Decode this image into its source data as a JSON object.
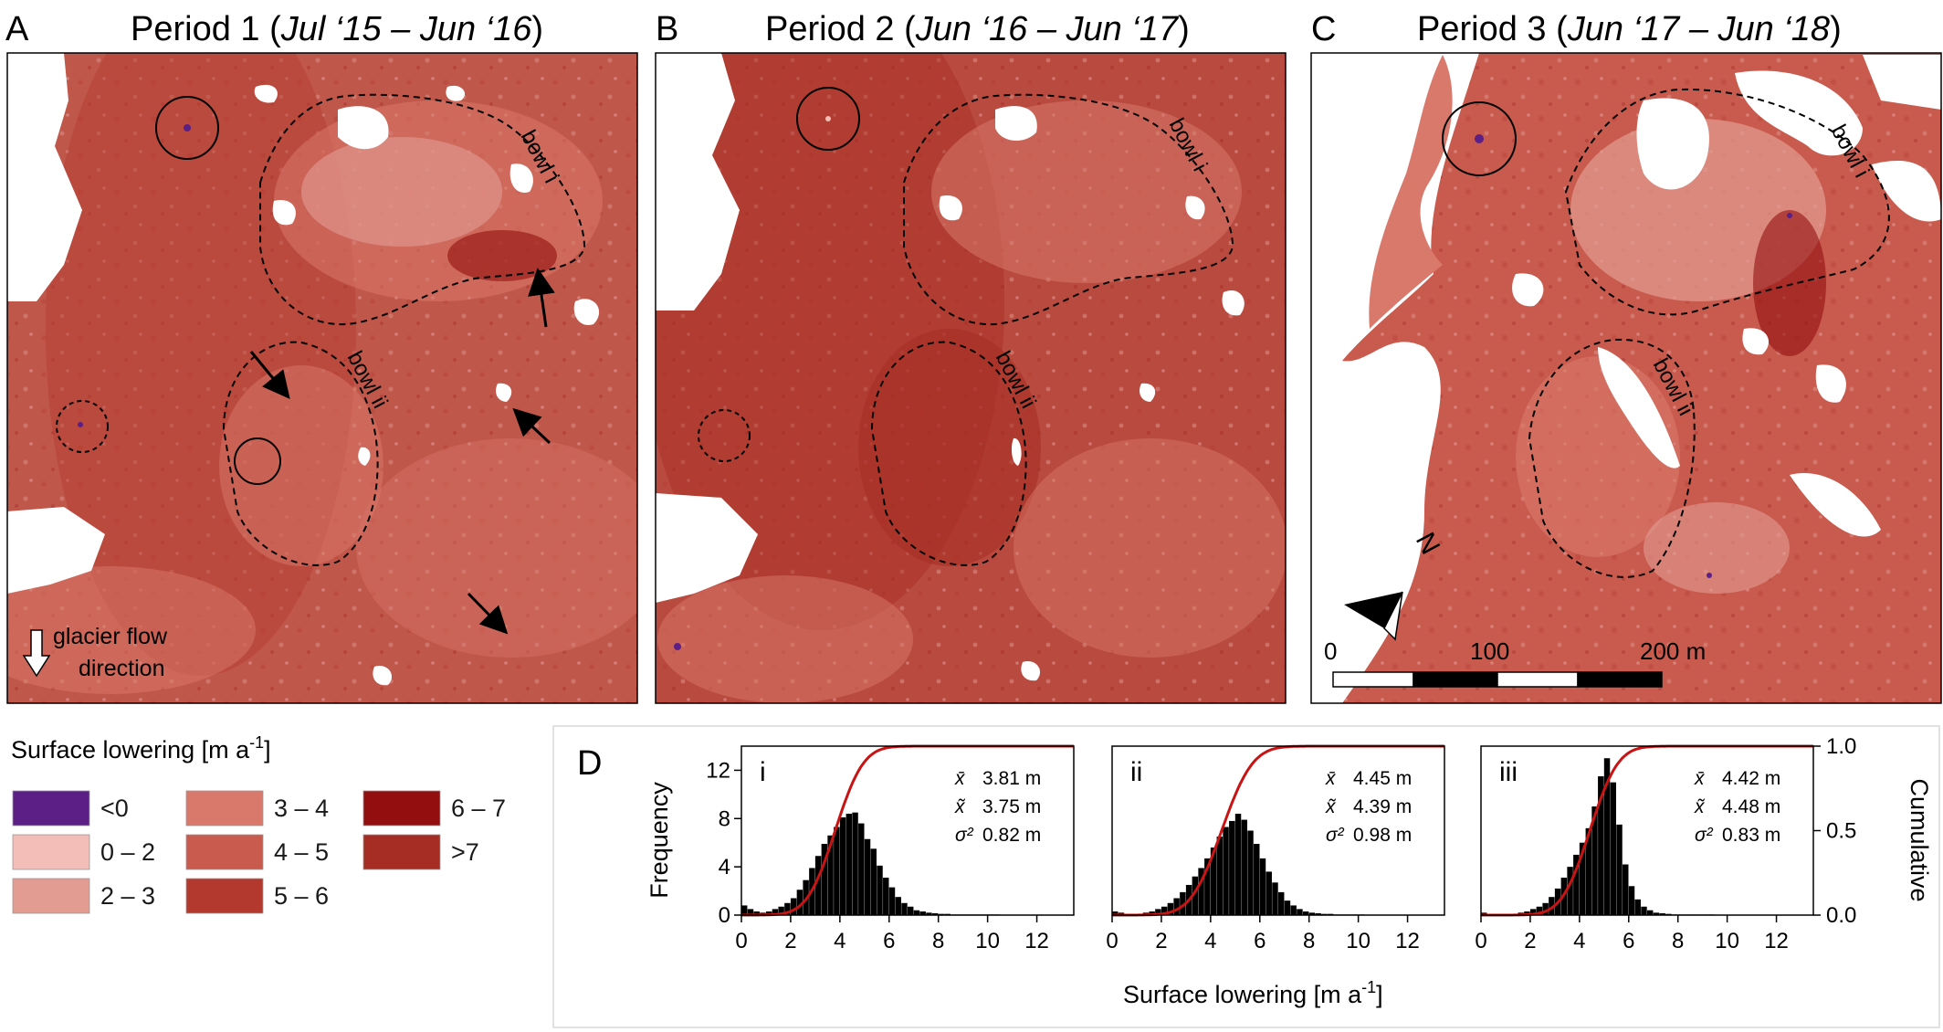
{
  "panels": [
    {
      "letter": "A",
      "title": "Period 1 (",
      "title_italic": "Jul ‘15 – Jun ‘16",
      "title_end": ")"
    },
    {
      "letter": "B",
      "title": "Period 2 (",
      "title_italic": "Jun ‘16 – Jun ‘17",
      "title_end": ")"
    },
    {
      "letter": "C",
      "title": "Period 3 (",
      "title_italic": "Jun ‘17 – Jun ‘18",
      "title_end": ")"
    }
  ],
  "map_annotations": {
    "bowl_i": "bowl i",
    "bowl_ii": "bowl ii",
    "flow_label_line1": "glacier flow",
    "flow_label_line2": "direction",
    "north": "N",
    "scale_labels": [
      "0",
      "100",
      "200 m"
    ]
  },
  "legend": {
    "title": "Surface lowering [m a",
    "title_sup": "-1",
    "title_end": "]",
    "items": [
      {
        "label": "<0",
        "color": "#5b1f86"
      },
      {
        "label": "0 – 2",
        "color": "#f3bdb8"
      },
      {
        "label": "2 – 3",
        "color": "#e39c92"
      },
      {
        "label": "3 – 4",
        "color": "#d9796b"
      },
      {
        "label": "4 – 5",
        "color": "#c85a4e"
      },
      {
        "label": "5 – 6",
        "color": "#b3392e"
      },
      {
        "label": "6 – 7",
        "color": "#930f0f"
      },
      {
        "label": ">7",
        "color": "#a62d23"
      }
    ]
  },
  "histograms": {
    "panel_letter": "D",
    "ylabel_left": "Frequency",
    "ylabel_right": "Cumulative",
    "xlabel": "Surface lowering [m a",
    "xlabel_sup": "-1",
    "xlabel_end": "]",
    "colors": {
      "bars": "#000000",
      "cdf": "#c81414"
    }
  },
  "chart_data": [
    {
      "type": "bar",
      "title": "i",
      "bin_width": 0.25,
      "bin_start": 0,
      "values": [
        0.8,
        0.5,
        0.3,
        0.2,
        0.3,
        0.5,
        0.7,
        1.0,
        1.4,
        2.1,
        2.9,
        3.9,
        4.9,
        5.9,
        6.6,
        7.3,
        8.1,
        8.4,
        8.5,
        7.6,
        6.3,
        5.5,
        4.1,
        3.1,
        2.3,
        1.5,
        1.0,
        0.7,
        0.4,
        0.3,
        0.2,
        0.15,
        0.1,
        0.1,
        0.05,
        0.05,
        0.05,
        0.05,
        0.05,
        0.05,
        0.05,
        0.05,
        0,
        0,
        0,
        0,
        0,
        0,
        0,
        0,
        0,
        0
      ],
      "cdf_mean": 3.81,
      "cdf_sd": 0.9,
      "stats": [
        {
          "sym": "x̄",
          "value": "3.81 m"
        },
        {
          "sym": "x̃",
          "value": "3.75 m"
        },
        {
          "sym": "σ²",
          "value": "0.82 m"
        }
      ],
      "xlim": [
        0,
        13.5
      ],
      "ylim": [
        0,
        14
      ],
      "xticks": [
        "0",
        "2",
        "4",
        "6",
        "8",
        "10",
        "12"
      ],
      "yticks": [
        "0",
        "4",
        "8",
        "12"
      ],
      "y2ticks": [
        "0.0",
        "0.5",
        "1.0"
      ]
    },
    {
      "type": "bar",
      "title": "ii",
      "bin_width": 0.25,
      "bin_start": 0,
      "values": [
        0.3,
        0.2,
        0.1,
        0.1,
        0.1,
        0.2,
        0.3,
        0.5,
        0.7,
        1.0,
        1.4,
        1.9,
        2.5,
        3.2,
        3.9,
        4.7,
        5.6,
        6.5,
        7.3,
        7.8,
        8.4,
        7.9,
        7.0,
        5.9,
        4.7,
        3.6,
        2.7,
        1.9,
        1.2,
        0.8,
        0.5,
        0.3,
        0.2,
        0.15,
        0.1,
        0.1,
        0.05,
        0.05,
        0.05,
        0.05,
        0.05,
        0,
        0,
        0,
        0,
        0,
        0,
        0,
        0,
        0,
        0,
        0
      ],
      "cdf_mean": 4.45,
      "cdf_sd": 0.99,
      "stats": [
        {
          "sym": "x̄",
          "value": "4.45 m"
        },
        {
          "sym": "x̃",
          "value": "4.39 m"
        },
        {
          "sym": "σ²",
          "value": "0.98 m"
        }
      ],
      "xlim": [
        0,
        13.5
      ],
      "ylim": [
        0,
        14
      ],
      "xticks": [
        "0",
        "2",
        "4",
        "6",
        "8",
        "10",
        "12"
      ],
      "yticks": [
        "0",
        "4",
        "8",
        "12"
      ],
      "y2ticks": [
        "0.0",
        "0.5",
        "1.0"
      ]
    },
    {
      "type": "bar",
      "title": "iii",
      "bin_width": 0.25,
      "bin_start": 0,
      "values": [
        0.2,
        0.1,
        0.1,
        0.1,
        0.1,
        0.1,
        0.2,
        0.3,
        0.5,
        0.7,
        1.0,
        1.5,
        2.2,
        3.1,
        4.0,
        5.0,
        6.0,
        7.2,
        9.0,
        11.5,
        13.0,
        11.0,
        7.5,
        4.2,
        2.4,
        1.3,
        0.7,
        0.4,
        0.2,
        0.15,
        0.1,
        0.05,
        0.05,
        0.05,
        0.05,
        0.05,
        0.05,
        0.05,
        0,
        0,
        0,
        0,
        0,
        0,
        0,
        0,
        0,
        0,
        0,
        0,
        0,
        0
      ],
      "cdf_mean": 4.42,
      "cdf_sd": 0.9,
      "stats": [
        {
          "sym": "x̄",
          "value": "4.42 m"
        },
        {
          "sym": "x̃",
          "value": "4.48 m"
        },
        {
          "sym": "σ²",
          "value": "0.83 m"
        }
      ],
      "xlim": [
        0,
        13.5
      ],
      "ylim": [
        0,
        14
      ],
      "xticks": [
        "0",
        "2",
        "4",
        "6",
        "8",
        "10",
        "12"
      ],
      "yticks": [
        "0",
        "4",
        "8",
        "12"
      ],
      "y2ticks": [
        "0.0",
        "0.5",
        "1.0"
      ]
    }
  ]
}
